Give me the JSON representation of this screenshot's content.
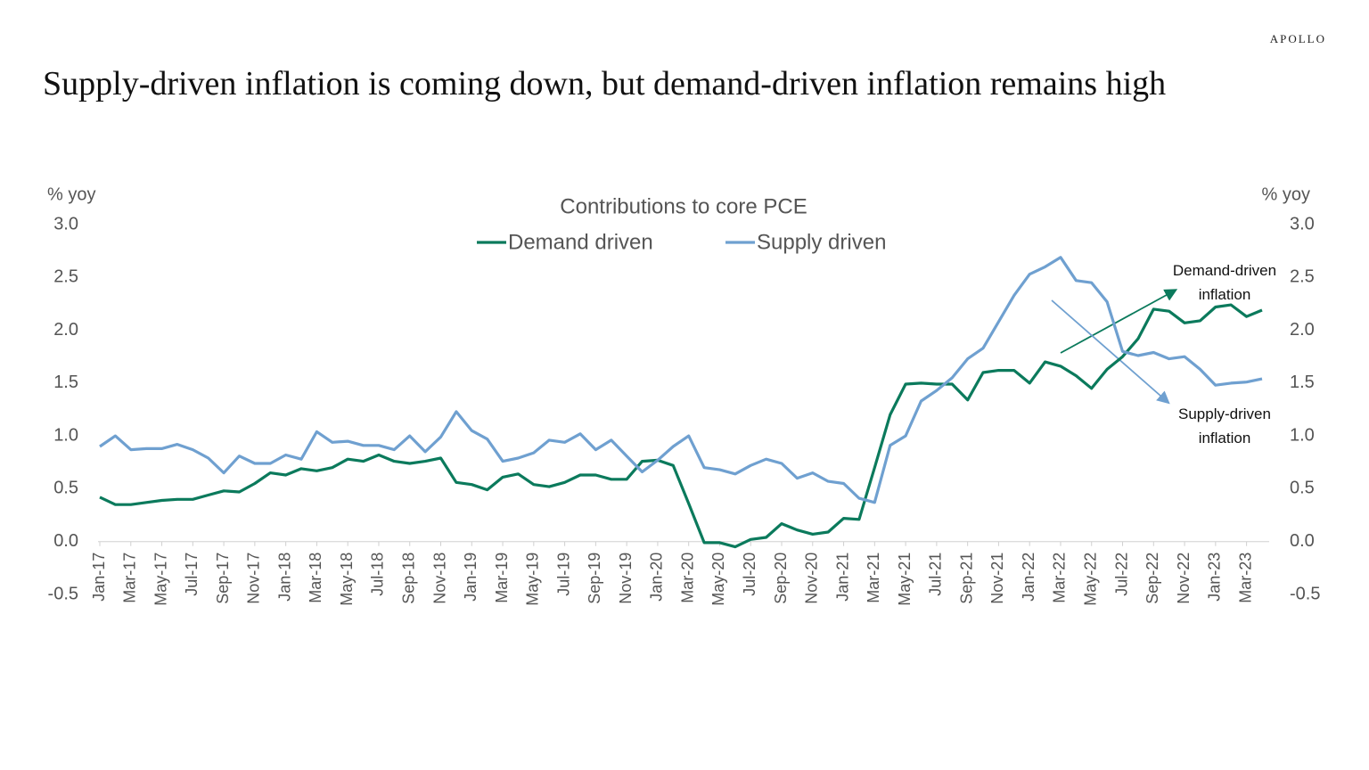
{
  "brand": "APOLLO",
  "chart_data": {
    "type": "line",
    "title": "Supply-driven inflation is coming down, but demand-driven inflation remains high",
    "subtitle": "Contributions to core PCE",
    "y_label": "% yoy",
    "y2_label": "% yoy",
    "categories": [
      "Jan-17",
      null,
      "Mar-17",
      null,
      "May-17",
      null,
      "Jul-17",
      null,
      "Sep-17",
      null,
      "Nov-17",
      null,
      "Jan-18",
      null,
      "Mar-18",
      null,
      "May-18",
      null,
      "Jul-18",
      null,
      "Sep-18",
      null,
      "Nov-18",
      null,
      "Jan-19",
      null,
      "Mar-19",
      null,
      "May-19",
      null,
      "Jul-19",
      null,
      "Sep-19",
      null,
      "Nov-19",
      null,
      "Jan-20",
      null,
      "Mar-20",
      null,
      "May-20",
      null,
      "Jul-20",
      null,
      "Sep-20",
      null,
      "Nov-20",
      null,
      "Jan-21",
      null,
      "Mar-21",
      null,
      "May-21",
      null,
      "Jul-21",
      null,
      "Sep-21",
      null,
      "Nov-21",
      null,
      "Jan-22",
      null,
      "Mar-22",
      null,
      "May-22",
      null,
      "Jul-22",
      null,
      "Sep-22",
      null,
      "Nov-22",
      null,
      "Jan-23",
      null,
      "Mar-23",
      null
    ],
    "series": [
      {
        "name": "Demand driven",
        "color": "#0b7a5c",
        "values": [
          0.42,
          0.35,
          0.35,
          0.37,
          0.39,
          0.4,
          0.4,
          0.44,
          0.48,
          0.47,
          0.55,
          0.65,
          0.63,
          0.69,
          0.67,
          0.7,
          0.78,
          0.76,
          0.82,
          0.76,
          0.74,
          0.76,
          0.79,
          0.56,
          0.54,
          0.49,
          0.61,
          0.64,
          0.54,
          0.52,
          0.56,
          0.63,
          0.63,
          0.59,
          0.59,
          0.76,
          0.77,
          0.72,
          0.36,
          -0.01,
          -0.01,
          -0.05,
          0.02,
          0.04,
          0.17,
          0.11,
          0.07,
          0.09,
          0.22,
          0.21,
          0.7,
          1.2,
          1.49,
          1.5,
          1.49,
          1.49,
          1.34,
          1.6,
          1.62,
          1.62,
          1.5,
          1.7,
          1.66,
          1.57,
          1.45,
          1.63,
          1.75,
          1.92,
          2.2,
          2.18,
          2.07,
          2.09,
          2.22,
          2.24,
          2.13,
          2.19
        ]
      },
      {
        "name": "Supply driven",
        "color": "#6fa0d0",
        "values": [
          0.9,
          1.0,
          0.87,
          0.88,
          0.88,
          0.92,
          0.87,
          0.79,
          0.65,
          0.81,
          0.74,
          0.74,
          0.82,
          0.78,
          1.04,
          0.94,
          0.95,
          0.91,
          0.91,
          0.87,
          1.0,
          0.85,
          0.99,
          1.23,
          1.05,
          0.97,
          0.76,
          0.79,
          0.84,
          0.96,
          0.94,
          1.02,
          0.87,
          0.96,
          0.81,
          0.66,
          0.77,
          0.9,
          1.0,
          0.7,
          0.68,
          0.64,
          0.72,
          0.78,
          0.74,
          0.6,
          0.65,
          0.57,
          0.55,
          0.41,
          0.37,
          0.91,
          1.0,
          1.33,
          1.43,
          1.55,
          1.73,
          1.83,
          2.08,
          2.33,
          2.53,
          2.6,
          2.69,
          2.47,
          2.45,
          2.27,
          1.8,
          1.76,
          1.79,
          1.73,
          1.75,
          1.63,
          1.48,
          1.5,
          1.51,
          1.54
        ]
      }
    ],
    "ylim": [
      -0.5,
      3.0
    ],
    "yticks": [
      -0.5,
      {
        "value": 0,
        "label": "0.0"
      },
      0.5,
      {
        "value": 1,
        "label": "1.0"
      },
      1.5,
      {
        "value": 2,
        "label": "2.0"
      },
      2.5,
      {
        "value": 3,
        "label": "3.0"
      }
    ],
    "y2lim": [
      -0.5,
      3.0
    ],
    "y2ticks": [
      -0.5,
      {
        "value": 0,
        "label": "0.0"
      },
      0.5,
      {
        "value": 1,
        "label": "1.0"
      },
      1.5,
      {
        "value": 2,
        "label": "2.0"
      },
      2.5,
      {
        "value": 3,
        "label": "3.0"
      }
    ],
    "grid": false,
    "legend": "top",
    "annotations": [
      "Demand-driven inflation",
      "Supply-driven inflation"
    ]
  }
}
